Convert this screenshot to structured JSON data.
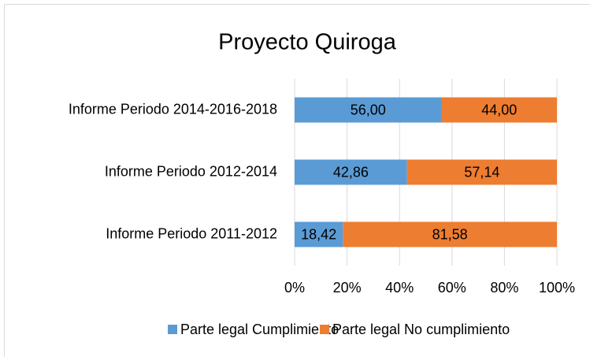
{
  "chart_data": {
    "type": "stacked_bar_horizontal",
    "title": "Proyecto Quiroga",
    "categories": [
      "Informe Periodo 2014-2016-2018",
      "Informe Periodo 2012-2014",
      "Informe Periodo 2011-2012"
    ],
    "series": [
      {
        "name": "Parte legal Cumplimiento",
        "color": "#5b9bd5",
        "values": [
          56.0,
          42.86,
          18.42
        ],
        "value_labels": [
          "56,00",
          "42,86",
          "18,42"
        ]
      },
      {
        "name": "Parte legal No cumplimiento",
        "color": "#ed7d31",
        "values": [
          44.0,
          57.14,
          81.58
        ],
        "value_labels": [
          "44,00",
          "57,14",
          "81,58"
        ]
      }
    ],
    "xlim": [
      0,
      100
    ],
    "xticks": [
      {
        "value": 0,
        "label": "0%"
      },
      {
        "value": 20,
        "label": "20%"
      },
      {
        "value": 40,
        "label": "40%"
      },
      {
        "value": 60,
        "label": "60%"
      },
      {
        "value": 80,
        "label": "80%"
      },
      {
        "value": 100,
        "label": "100%"
      }
    ],
    "grid": true,
    "legend": "bottom"
  }
}
